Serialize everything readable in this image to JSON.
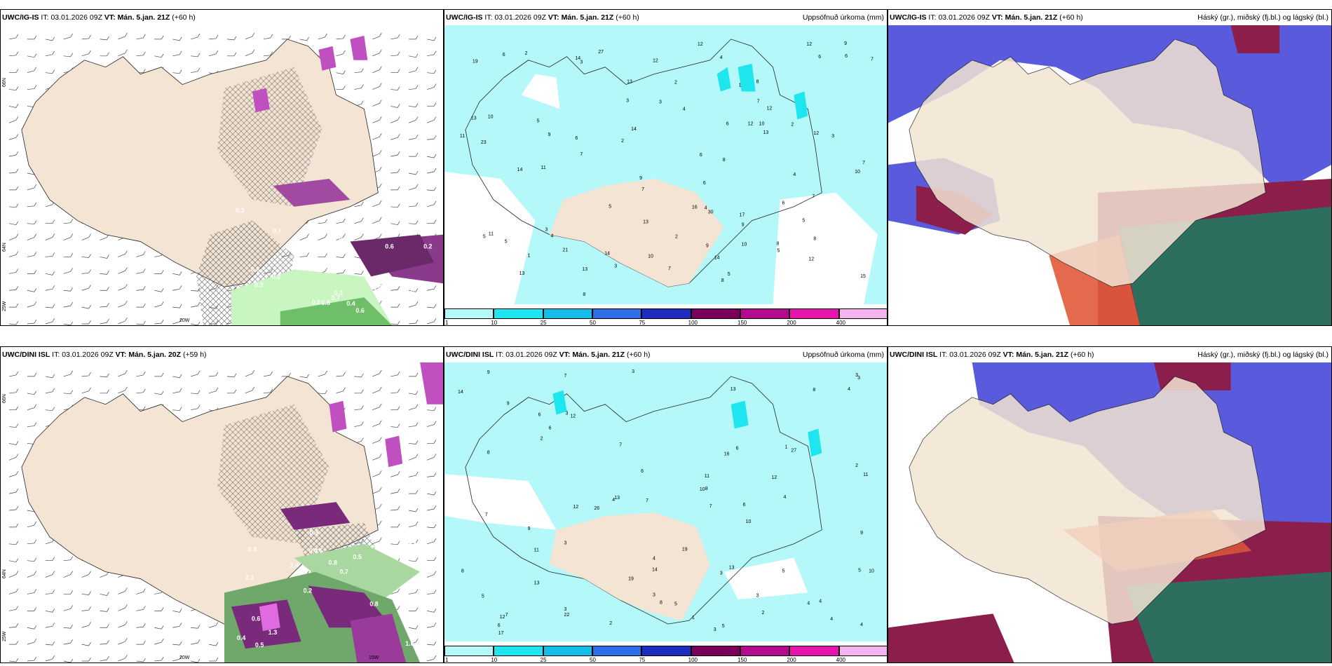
{
  "rows": [
    {
      "panels": [
        {
          "model": "UWC/IG-IS",
          "it_label": "IT:",
          "it": "03.01.2026 09Z",
          "vt_label": "VT:",
          "vt": "Mán. 5.jan. 21Z",
          "lead": "(+60 h)",
          "right_title": ""
        },
        {
          "model": "UWC/IG-IS",
          "it_label": "IT:",
          "it": "03.01.2026 09Z",
          "vt_label": "VT:",
          "vt": "Mán. 5.jan. 21Z",
          "lead": "(+60 h)",
          "right_title": "Uppsöfnuð úrkoma (mm)"
        },
        {
          "model": "UWC/IG-IS",
          "it_label": "IT:",
          "it": "03.01.2026 09Z",
          "vt_label": "VT:",
          "vt": "Mán. 5.jan. 21Z",
          "lead": "(+60 h)",
          "right_title": "Háský (gr.), miðský (fj.bl.) og lágský (bl.)"
        }
      ]
    },
    {
      "panels": [
        {
          "model": "UWC/DINI ISL",
          "it_label": "IT:",
          "it": "03.01.2026 09Z",
          "vt_label": "VT:",
          "vt": "Mán. 5.jan. 20Z",
          "lead": "(+59 h)",
          "right_title": ""
        },
        {
          "model": "UWC/DINI ISL",
          "it_label": "IT:",
          "it": "03.01.2026 09Z",
          "vt_label": "VT:",
          "vt": "Mán. 5.jan. 21Z",
          "lead": "(+60 h)",
          "right_title": "Uppsöfnuð úrkoma (mm)"
        },
        {
          "model": "UWC/DINI ISL",
          "it_label": "IT:",
          "it": "03.01.2026 09Z",
          "vt_label": "VT:",
          "vt": "Mán. 5.jan. 21Z",
          "lead": "(+60 h)",
          "right_title": "Háský (gr.), miðský (fj.bl.) og lágský (bl.)"
        }
      ]
    }
  ],
  "axis_labels": {
    "lat66": "66N",
    "lat64": "64N",
    "lon25": "25W",
    "lon20": "20W",
    "lon15": "15W"
  },
  "colorbar": {
    "ticks": [
      "1",
      "10",
      "25",
      "50",
      "75",
      "100",
      "150",
      "200",
      "400"
    ],
    "colors": [
      "#b4f8fa",
      "#1ee6ee",
      "#14bde6",
      "#2d6ee6",
      "#1e2dbe",
      "#78005a",
      "#b40a8c",
      "#e614aa",
      "#f5b4f0"
    ]
  },
  "precip_numbers_top": [
    "5",
    "3",
    "4",
    "5",
    "2",
    "14",
    "10",
    "7",
    "7",
    "21",
    "5",
    "13",
    "9",
    "4",
    "13",
    "12",
    "23",
    "6",
    "6",
    "12",
    "8",
    "30",
    "13",
    "5",
    "8",
    "12",
    "11",
    "9",
    "7",
    "13",
    "9",
    "9",
    "8",
    "14",
    "27",
    "10",
    "12",
    "10",
    "7",
    "17",
    "12",
    "6",
    "7",
    "8",
    "4",
    "7",
    "16",
    "13",
    "6",
    "6",
    "5",
    "4",
    "6",
    "7",
    "19",
    "15",
    "12",
    "14",
    "8",
    "5",
    "11",
    "8",
    "10",
    "14",
    "14",
    "13",
    "2",
    "9",
    "10",
    "2",
    "3",
    "6",
    "1",
    "2",
    "3",
    "5",
    "4",
    "3",
    "12",
    "11",
    "3",
    "6",
    "1",
    "2",
    "3"
  ],
  "precip_numbers_bottom": [
    "2",
    "3",
    "3",
    "3",
    "7",
    "9",
    "12",
    "4",
    "3",
    "7",
    "8",
    "8",
    "13",
    "14",
    "13",
    "10",
    "8",
    "22",
    "26",
    "14",
    "3",
    "3",
    "11",
    "12",
    "27",
    "9",
    "8",
    "11",
    "9",
    "10",
    "7",
    "5",
    "4",
    "4",
    "13",
    "6",
    "5",
    "5",
    "6",
    "4",
    "8",
    "12",
    "10",
    "7",
    "12",
    "13",
    "9",
    "1",
    "6",
    "3",
    "3",
    "2",
    "4",
    "5",
    "3",
    "1",
    "4",
    "6",
    "3",
    "7",
    "4",
    "2",
    "2",
    "4",
    "5",
    "6",
    "7",
    "11",
    "17",
    "16",
    "19",
    "19",
    "6"
  ],
  "wind_labels_top": [
    "0.2",
    "0.3",
    "0.3",
    "0.3",
    "0.2",
    "0.3",
    "0.7",
    "0.8",
    "0.6",
    "0.7",
    "0.2",
    "0.6",
    "0.8",
    "0.6",
    "0.7",
    "0.4",
    "0.4",
    "0.5"
  ],
  "wind_labels_bottom": [
    "1.6",
    "2.1",
    "0.7",
    "0.2",
    "0.5",
    "0.5",
    "0.3",
    "0.8",
    "0.6",
    "1.4",
    "0.4",
    "1.3",
    "0.6",
    "0.7",
    "0.8",
    "0.5",
    "0.3"
  ]
}
